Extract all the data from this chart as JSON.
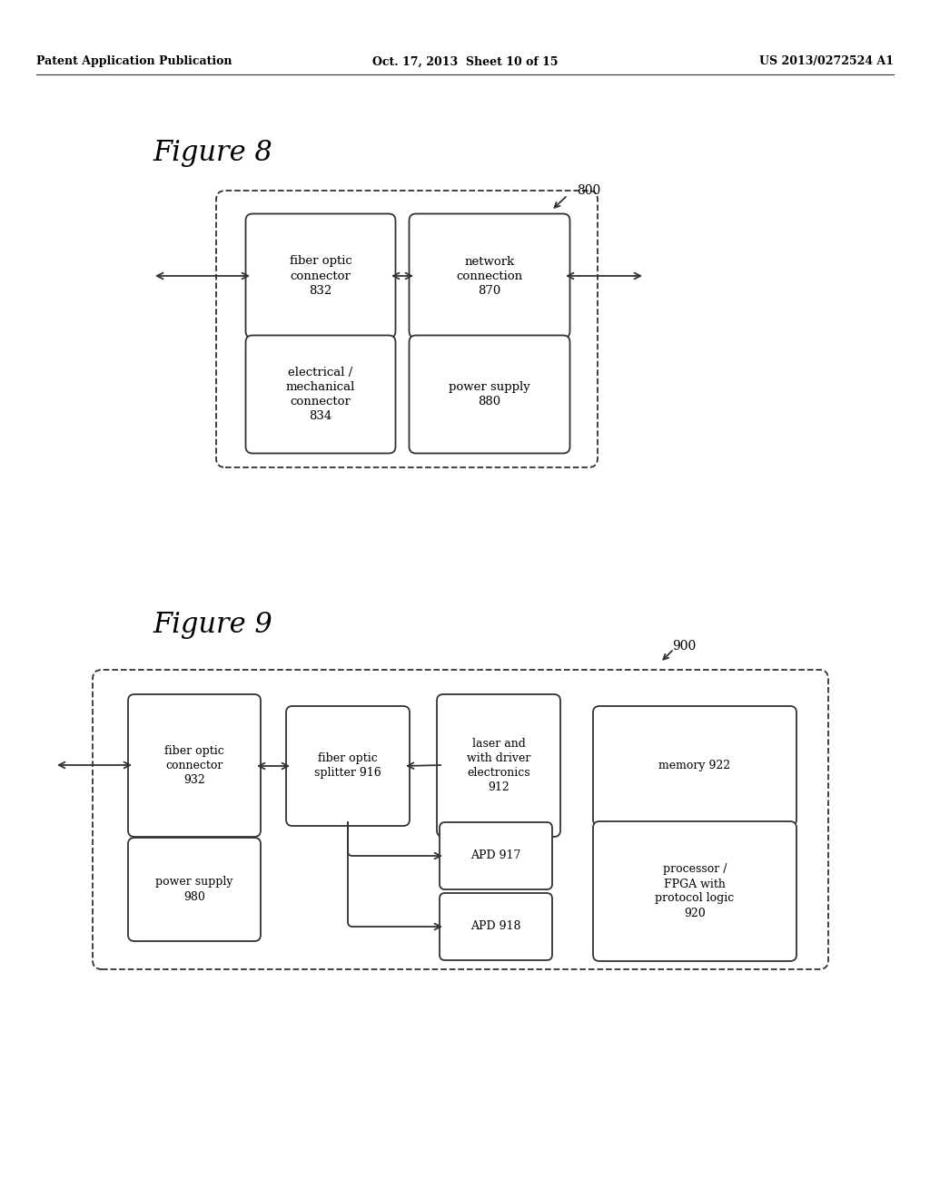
{
  "bg_color": "#ffffff",
  "header_left": "Patent Application Publication",
  "header_mid": "Oct. 17, 2013  Sheet 10 of 15",
  "header_right": "US 2013/0272524 A1",
  "fig8_title": "Figure 8",
  "fig8_label": "800",
  "fig9_title": "Figure 9",
  "fig9_label": "900"
}
